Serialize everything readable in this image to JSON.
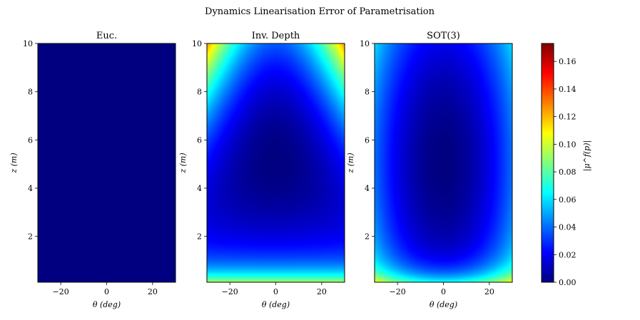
{
  "figure": {
    "title": "Dynamics Linearisation Error of Parametrisation"
  },
  "colorbar": {
    "label": "|μ^f(p)|",
    "range": [
      0,
      0.173
    ],
    "ticks": [
      "0.00",
      "0.02",
      "0.04",
      "0.06",
      "0.08",
      "0.10",
      "0.12",
      "0.14",
      "0.16"
    ],
    "colormap": "jet",
    "colors": [
      "#00007f",
      "#0000ff",
      "#007fff",
      "#00ffff",
      "#7fff7f",
      "#ffff00",
      "#ff7f00",
      "#ff0000",
      "#7f0000"
    ]
  },
  "chart_data": [
    {
      "type": "heatmap",
      "title": "Euc.",
      "xlabel": "θ (deg)",
      "ylabel": "z (m)",
      "xlim": [
        -30,
        30
      ],
      "ylim": [
        0.1,
        10
      ],
      "xticks": [
        -20,
        0,
        20
      ],
      "yticks": [
        2,
        4,
        6,
        8,
        10
      ],
      "field": "zero",
      "value_range": [
        0,
        0
      ]
    },
    {
      "type": "heatmap",
      "title": "Inv. Depth",
      "xlabel": "θ (deg)",
      "ylabel": "z (m)",
      "xlim": [
        -30,
        30
      ],
      "ylim": [
        0.1,
        10
      ],
      "xticks": [
        -20,
        0,
        20
      ],
      "yticks": [
        2,
        4,
        6,
        8,
        10
      ],
      "field": "inverse_depth",
      "value_range": [
        0.0,
        0.173
      ]
    },
    {
      "type": "heatmap",
      "title": "SOT(3)",
      "xlabel": "θ (deg)",
      "ylabel": "z (m)",
      "xlim": [
        -30,
        30
      ],
      "ylim": [
        0.1,
        10
      ],
      "xticks": [
        -20,
        0,
        20
      ],
      "yticks": [
        2,
        4,
        6,
        8,
        10
      ],
      "field": "sot3",
      "value_range": [
        0.0,
        0.085
      ]
    }
  ]
}
